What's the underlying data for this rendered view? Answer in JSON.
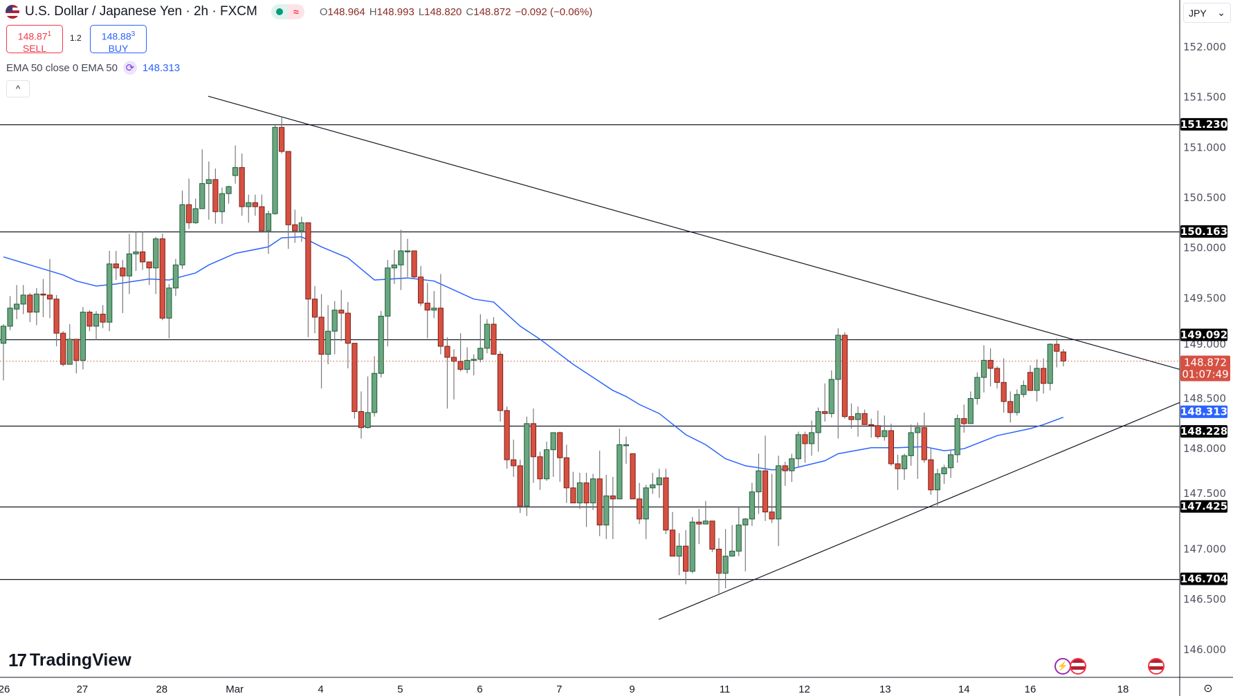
{
  "header": {
    "symbol_name": "U.S. Dollar / Japanese Yen · 2h · FXCM",
    "status_icon": "market-open-dot",
    "delay_icon": "≈",
    "ohlc": {
      "o_key": "O",
      "open": "148.964",
      "h_key": "H",
      "high": "148.993",
      "l_key": "L",
      "low": "148.820",
      "c_key": "C",
      "close": "148.872",
      "change": "−0.092 (−0.06%)"
    }
  },
  "trade": {
    "sell_price": "148.87",
    "sell_pip": "1",
    "sell_label": "SELL",
    "spread": "1.2",
    "buy_price": "148.88",
    "buy_pip": "3",
    "buy_label": "BUY"
  },
  "indicator": {
    "label": "EMA 50 close 0 EMA 50",
    "value": "148.313",
    "cycle_icon": "⟳"
  },
  "collapse_icon": "^",
  "currency_select": {
    "value": "JPY",
    "chevron": "⌄"
  },
  "logo": {
    "text": "TradingView",
    "mark": "17"
  },
  "settings_icon": "⊙",
  "colors": {
    "up": "#6aa67f",
    "up_border": "#1f5b3a",
    "down": "#d65142",
    "down_border": "#7b1f16",
    "wick": "#787878",
    "ema": "#2962ff",
    "last": "#d65142"
  },
  "chart_data": {
    "type": "candlestick",
    "symbol": "USDJPY",
    "timeframe": "2h",
    "ylim": [
      145.4,
      152.45
    ],
    "y_ticks": [
      "146.000",
      "146.500",
      "147.000",
      "147.500",
      "148.000",
      "148.500",
      "149.000",
      "149.500",
      "150.000",
      "150.500",
      "151.000",
      "151.500",
      "152.000"
    ],
    "x_ticks": [
      {
        "label": "26",
        "at": 1.1
      },
      {
        "label": "27",
        "at": 12.9
      },
      {
        "label": "28",
        "at": 24.9
      },
      {
        "label": "Mar",
        "at": 35.9
      },
      {
        "label": "4",
        "at": 48.9
      },
      {
        "label": "5",
        "at": 60.9
      },
      {
        "label": "6",
        "at": 72.9
      },
      {
        "label": "7",
        "at": 84.9
      },
      {
        "label": "9",
        "at": 95.9
      },
      {
        "label": "11",
        "at": 109.9
      },
      {
        "label": "12",
        "at": 121.9
      },
      {
        "label": "13",
        "at": 134.1
      },
      {
        "label": "14",
        "at": 146
      },
      {
        "label": "16",
        "at": 156
      },
      {
        "label": "18",
        "at": 170
      }
    ],
    "levels": [
      "151.230",
      "150.163",
      "149.092",
      "148.228",
      "147.425",
      "146.704"
    ],
    "last_price": "148.872",
    "countdown": "01:07:49",
    "ema_value": "148.313",
    "trendlines": [
      [
        [
          31.9,
          151.51
        ],
        [
          178.6,
          148.79
        ]
      ],
      [
        [
          99.9,
          146.3
        ],
        [
          178.6,
          148.46
        ]
      ]
    ],
    "ema": [
      [
        1,
        149.91
      ],
      [
        5,
        149.83
      ],
      [
        10,
        149.73
      ],
      [
        12,
        149.67
      ],
      [
        15,
        149.62
      ],
      [
        18,
        149.64
      ],
      [
        23,
        149.69
      ],
      [
        26,
        149.68
      ],
      [
        30,
        149.75
      ],
      [
        32,
        149.83
      ],
      [
        36,
        149.945
      ],
      [
        41,
        150.01
      ],
      [
        43,
        150.1
      ],
      [
        46,
        150.11
      ],
      [
        49,
        150.01
      ],
      [
        53,
        149.9
      ],
      [
        57,
        149.68
      ],
      [
        62,
        149.7
      ],
      [
        66,
        149.67
      ],
      [
        72,
        149.49
      ],
      [
        75,
        149.46
      ],
      [
        79,
        149.22
      ],
      [
        82,
        149.09
      ],
      [
        87,
        148.84
      ],
      [
        90,
        148.71
      ],
      [
        93,
        148.58
      ],
      [
        95,
        148.52
      ],
      [
        97,
        148.44
      ],
      [
        100,
        148.35
      ],
      [
        104,
        148.14
      ],
      [
        107,
        148.04
      ],
      [
        110,
        147.9
      ],
      [
        113,
        147.83
      ],
      [
        117,
        147.79
      ],
      [
        120,
        147.8
      ],
      [
        125,
        147.88
      ],
      [
        127,
        147.95
      ],
      [
        132,
        148.01
      ],
      [
        136,
        148.01
      ],
      [
        140,
        148.02
      ],
      [
        143,
        147.98
      ],
      [
        146,
        148.0
      ],
      [
        151,
        148.13
      ],
      [
        156,
        148.2
      ],
      [
        158,
        148.24
      ],
      [
        161,
        148.313
      ]
    ],
    "ohlc": [
      [
        149.05,
        149.24,
        148.68,
        149.22
      ],
      [
        149.22,
        149.52,
        149.18,
        149.4
      ],
      [
        149.39,
        149.63,
        149.29,
        149.44
      ],
      [
        149.44,
        149.63,
        149.34,
        149.53
      ],
      [
        149.53,
        149.55,
        149.26,
        149.36
      ],
      [
        149.36,
        149.6,
        149.23,
        149.54
      ],
      [
        149.54,
        149.69,
        149.31,
        149.53
      ],
      [
        149.53,
        149.89,
        149.3,
        149.49
      ],
      [
        149.49,
        149.53,
        149.02,
        149.15
      ],
      [
        149.15,
        149.17,
        148.82,
        148.84
      ],
      [
        148.84,
        149.24,
        148.84,
        149.09
      ],
      [
        149.09,
        149.09,
        148.75,
        148.88
      ],
      [
        148.88,
        149.41,
        148.79,
        149.36
      ],
      [
        149.36,
        149.38,
        149.17,
        149.22
      ],
      [
        149.22,
        149.37,
        149.08,
        149.34
      ],
      [
        149.34,
        149.43,
        149.2,
        149.26
      ],
      [
        149.26,
        149.97,
        149.17,
        149.84
      ],
      [
        149.84,
        149.97,
        149.68,
        149.8
      ],
      [
        149.8,
        149.88,
        149.35,
        149.72
      ],
      [
        149.72,
        150.14,
        149.54,
        149.94
      ],
      [
        149.94,
        150.16,
        149.77,
        149.96
      ],
      [
        149.96,
        150.16,
        149.78,
        149.86
      ],
      [
        149.86,
        149.86,
        149.63,
        149.8
      ],
      [
        149.8,
        150.11,
        149.54,
        150.09
      ],
      [
        150.09,
        150.14,
        149.28,
        149.3
      ],
      [
        149.3,
        149.64,
        149.1,
        149.6
      ],
      [
        149.6,
        149.89,
        149.52,
        149.83
      ],
      [
        149.83,
        150.57,
        149.79,
        150.43
      ],
      [
        150.43,
        150.69,
        150.19,
        150.25
      ],
      [
        150.25,
        150.49,
        150.24,
        150.39
      ],
      [
        150.39,
        150.98,
        150.39,
        150.64
      ],
      [
        150.64,
        150.86,
        150.28,
        150.68
      ],
      [
        150.68,
        150.79,
        150.24,
        150.36
      ],
      [
        150.36,
        150.6,
        150.24,
        150.54
      ],
      [
        150.54,
        150.62,
        150.44,
        150.61
      ],
      [
        150.72,
        151.02,
        150.64,
        150.8
      ],
      [
        150.8,
        150.94,
        150.32,
        150.41
      ],
      [
        150.41,
        150.53,
        150.25,
        150.45
      ],
      [
        150.45,
        150.53,
        150.32,
        150.41
      ],
      [
        150.41,
        150.53,
        150.15,
        150.17
      ],
      [
        150.17,
        150.37,
        149.94,
        150.34
      ],
      [
        150.34,
        151.22,
        150.33,
        151.2
      ],
      [
        151.2,
        151.3,
        150.94,
        150.96
      ],
      [
        150.96,
        150.96,
        149.99,
        150.23
      ],
      [
        150.23,
        150.38,
        150.05,
        150.17
      ],
      [
        150.17,
        150.31,
        150.06,
        150.25
      ],
      [
        150.25,
        150.25,
        149.11,
        149.49
      ],
      [
        149.49,
        149.62,
        149.15,
        149.31
      ],
      [
        149.31,
        149.54,
        148.6,
        148.94
      ],
      [
        148.94,
        149.43,
        148.84,
        149.17
      ],
      [
        149.17,
        149.47,
        148.94,
        149.38
      ],
      [
        149.38,
        149.58,
        149.07,
        149.35
      ],
      [
        149.35,
        149.46,
        148.8,
        149.05
      ],
      [
        149.05,
        149.05,
        148.3,
        148.37
      ],
      [
        148.37,
        148.57,
        148.1,
        148.21
      ],
      [
        148.21,
        148.72,
        148.2,
        148.36
      ],
      [
        148.36,
        148.92,
        148.32,
        148.75
      ],
      [
        148.75,
        149.37,
        148.71,
        149.32
      ],
      [
        149.32,
        149.88,
        149.02,
        149.8
      ],
      [
        149.8,
        149.98,
        149.64,
        149.83
      ],
      [
        149.83,
        150.18,
        149.58,
        149.97
      ],
      [
        149.97,
        150.09,
        149.71,
        149.97
      ],
      [
        149.97,
        149.97,
        149.7,
        149.71
      ],
      [
        149.71,
        149.82,
        149.42,
        149.45
      ],
      [
        149.45,
        149.65,
        149.1,
        149.38
      ],
      [
        149.38,
        149.57,
        149.3,
        149.4
      ],
      [
        149.4,
        149.74,
        148.94,
        149.02
      ],
      [
        149.02,
        149.11,
        148.4,
        148.91
      ],
      [
        148.91,
        148.99,
        148.49,
        148.87
      ],
      [
        148.87,
        149.15,
        148.77,
        148.79
      ],
      [
        148.79,
        149.01,
        148.75,
        148.88
      ],
      [
        148.88,
        148.94,
        148.73,
        148.89
      ],
      [
        148.89,
        149.34,
        148.86,
        149.0
      ],
      [
        149.0,
        149.29,
        148.95,
        149.24
      ],
      [
        149.24,
        149.31,
        148.94,
        148.94
      ],
      [
        148.94,
        148.97,
        148.27,
        148.38
      ],
      [
        148.38,
        148.42,
        147.8,
        147.89
      ],
      [
        147.89,
        148.09,
        147.72,
        147.83
      ],
      [
        147.83,
        147.89,
        147.36,
        147.43
      ],
      [
        147.43,
        148.32,
        147.33,
        148.25
      ],
      [
        148.25,
        148.4,
        147.66,
        147.92
      ],
      [
        147.92,
        147.97,
        147.59,
        147.7
      ],
      [
        147.7,
        148.07,
        147.68,
        147.99
      ],
      [
        147.99,
        148.16,
        147.72,
        148.16
      ],
      [
        148.16,
        148.17,
        147.67,
        147.91
      ],
      [
        147.91,
        148.04,
        147.46,
        147.61
      ],
      [
        147.61,
        147.77,
        147.46,
        147.46
      ],
      [
        147.46,
        147.76,
        147.4,
        147.66
      ],
      [
        147.66,
        147.76,
        147.22,
        147.46
      ],
      [
        147.46,
        147.75,
        147.39,
        147.7
      ],
      [
        147.7,
        147.98,
        147.13,
        147.24
      ],
      [
        147.24,
        147.74,
        147.1,
        147.53
      ],
      [
        147.53,
        147.72,
        147.1,
        147.5
      ],
      [
        147.5,
        148.2,
        147.5,
        148.04
      ],
      [
        148.04,
        148.12,
        147.85,
        148.04
      ],
      [
        147.95,
        147.95,
        147.5,
        147.5
      ],
      [
        147.5,
        147.66,
        147.25,
        147.3
      ],
      [
        147.3,
        147.64,
        147.1,
        147.61
      ],
      [
        147.61,
        147.76,
        147.55,
        147.64
      ],
      [
        147.64,
        147.8,
        147.51,
        147.71
      ],
      [
        147.71,
        147.8,
        147.15,
        147.19
      ],
      [
        147.19,
        147.37,
        146.93,
        146.93
      ],
      [
        146.93,
        147.16,
        146.74,
        147.03
      ],
      [
        147.03,
        147.19,
        146.65,
        146.78
      ],
      [
        146.78,
        147.32,
        146.76,
        147.27
      ],
      [
        147.27,
        147.4,
        147.05,
        147.25
      ],
      [
        147.25,
        147.48,
        147.25,
        147.28
      ],
      [
        147.28,
        147.28,
        146.97,
        147.0
      ],
      [
        147.0,
        147.11,
        146.56,
        146.76
      ],
      [
        146.76,
        147.2,
        146.61,
        146.93
      ],
      [
        146.93,
        147.24,
        146.93,
        146.98
      ],
      [
        146.98,
        147.42,
        146.93,
        147.24
      ],
      [
        147.24,
        147.31,
        146.78,
        147.3
      ],
      [
        147.3,
        147.66,
        147.23,
        147.57
      ],
      [
        147.57,
        147.95,
        147.35,
        147.78
      ],
      [
        147.78,
        148.13,
        147.28,
        147.37
      ],
      [
        147.37,
        147.75,
        147.26,
        147.3
      ],
      [
        147.3,
        147.93,
        147.03,
        147.83
      ],
      [
        147.83,
        147.87,
        147.63,
        147.78
      ],
      [
        147.78,
        147.95,
        147.67,
        147.9
      ],
      [
        147.9,
        148.17,
        147.82,
        148.14
      ],
      [
        148.14,
        148.17,
        147.86,
        148.05
      ],
      [
        148.05,
        148.28,
        147.93,
        148.16
      ],
      [
        148.16,
        148.41,
        147.97,
        148.37
      ],
      [
        148.37,
        148.65,
        148.27,
        148.35
      ],
      [
        148.35,
        148.78,
        148.31,
        148.69
      ],
      [
        148.69,
        149.2,
        148.1,
        149.13
      ],
      [
        149.13,
        149.16,
        148.3,
        148.32
      ],
      [
        148.32,
        148.45,
        148.2,
        148.29
      ],
      [
        148.29,
        148.42,
        148.12,
        148.35
      ],
      [
        148.35,
        148.39,
        148.24,
        148.24
      ],
      [
        148.24,
        148.3,
        148.11,
        148.23
      ],
      [
        148.23,
        148.38,
        148.1,
        148.12
      ],
      [
        148.12,
        148.33,
        148.08,
        148.18
      ],
      [
        148.18,
        148.25,
        147.83,
        147.85
      ],
      [
        147.85,
        147.94,
        147.59,
        147.8
      ],
      [
        147.8,
        147.95,
        147.69,
        147.93
      ],
      [
        147.93,
        148.24,
        147.83,
        148.16
      ],
      [
        148.16,
        148.26,
        147.7,
        148.21
      ],
      [
        148.21,
        148.36,
        147.86,
        147.89
      ],
      [
        147.89,
        148.0,
        147.54,
        147.59
      ],
      [
        147.59,
        147.8,
        147.43,
        147.75
      ],
      [
        147.75,
        147.84,
        147.65,
        147.81
      ],
      [
        147.81,
        147.99,
        147.71,
        147.94
      ],
      [
        147.94,
        148.34,
        147.86,
        148.3
      ],
      [
        148.3,
        148.44,
        148.16,
        148.25
      ],
      [
        148.25,
        148.57,
        148.25,
        148.5
      ],
      [
        148.5,
        148.76,
        148.44,
        148.71
      ],
      [
        148.71,
        149.03,
        148.56,
        148.88
      ],
      [
        148.88,
        149.0,
        148.62,
        148.8
      ],
      [
        148.8,
        148.82,
        148.6,
        148.66
      ],
      [
        148.66,
        148.9,
        148.36,
        148.47
      ],
      [
        148.47,
        148.57,
        148.26,
        148.36
      ],
      [
        148.36,
        148.59,
        148.33,
        148.54
      ],
      [
        148.54,
        148.68,
        148.51,
        148.63
      ],
      [
        148.76,
        148.83,
        148.58,
        148.58
      ],
      [
        148.58,
        148.89,
        148.47,
        148.8
      ],
      [
        148.8,
        148.9,
        148.55,
        148.65
      ],
      [
        148.65,
        149.05,
        148.58,
        149.04
      ],
      [
        149.04,
        149.1,
        148.81,
        148.97
      ],
      [
        148.964,
        148.993,
        148.82,
        148.872
      ]
    ]
  }
}
